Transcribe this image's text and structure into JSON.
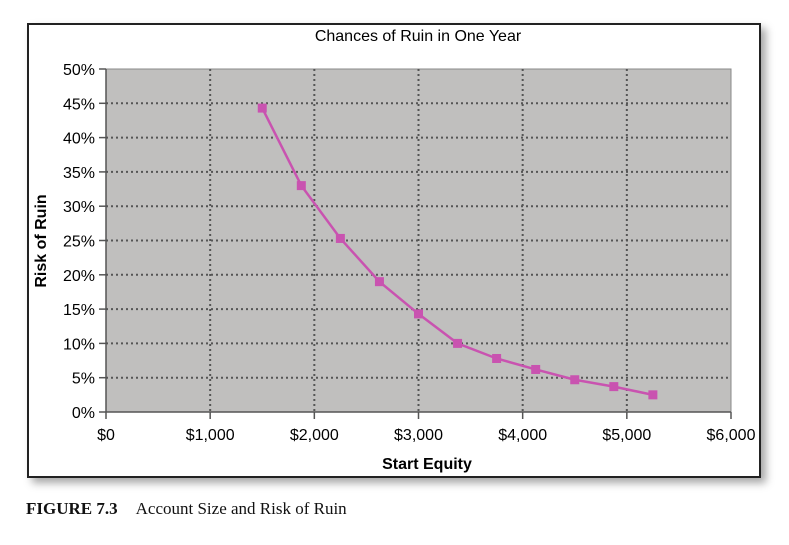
{
  "chart_data": {
    "type": "line",
    "title": "Chances of Ruin in One Year",
    "xlabel": "Start Equity",
    "ylabel": "Risk of Ruin",
    "xlim": [
      0,
      6000
    ],
    "ylim": [
      0,
      50
    ],
    "x_ticks": [
      0,
      1000,
      2000,
      3000,
      4000,
      5000,
      6000
    ],
    "x_tick_labels": [
      "$0",
      "$1,000",
      "$2,000",
      "$3,000",
      "$4,000",
      "$5,000",
      "$6,000"
    ],
    "y_ticks": [
      0,
      5,
      10,
      15,
      20,
      25,
      30,
      35,
      40,
      45,
      50
    ],
    "y_tick_labels": [
      "0%",
      "5%",
      "10%",
      "15%",
      "20%",
      "25%",
      "30%",
      "35%",
      "40%",
      "45%",
      "50%"
    ],
    "grid": true,
    "series": [
      {
        "name": "Risk of Ruin",
        "color": "#c953b0",
        "x": [
          1500,
          1875,
          2250,
          2625,
          3000,
          3375,
          3750,
          4125,
          4500,
          4875,
          5250
        ],
        "y": [
          44.3,
          33,
          25.3,
          19,
          14.3,
          10,
          7.8,
          6.2,
          4.7,
          3.7,
          2.5
        ]
      }
    ],
    "plot_background": "#c0bfbe"
  },
  "caption": {
    "label": "FIGURE 7.3",
    "text": "Account Size and Risk of Ruin"
  }
}
